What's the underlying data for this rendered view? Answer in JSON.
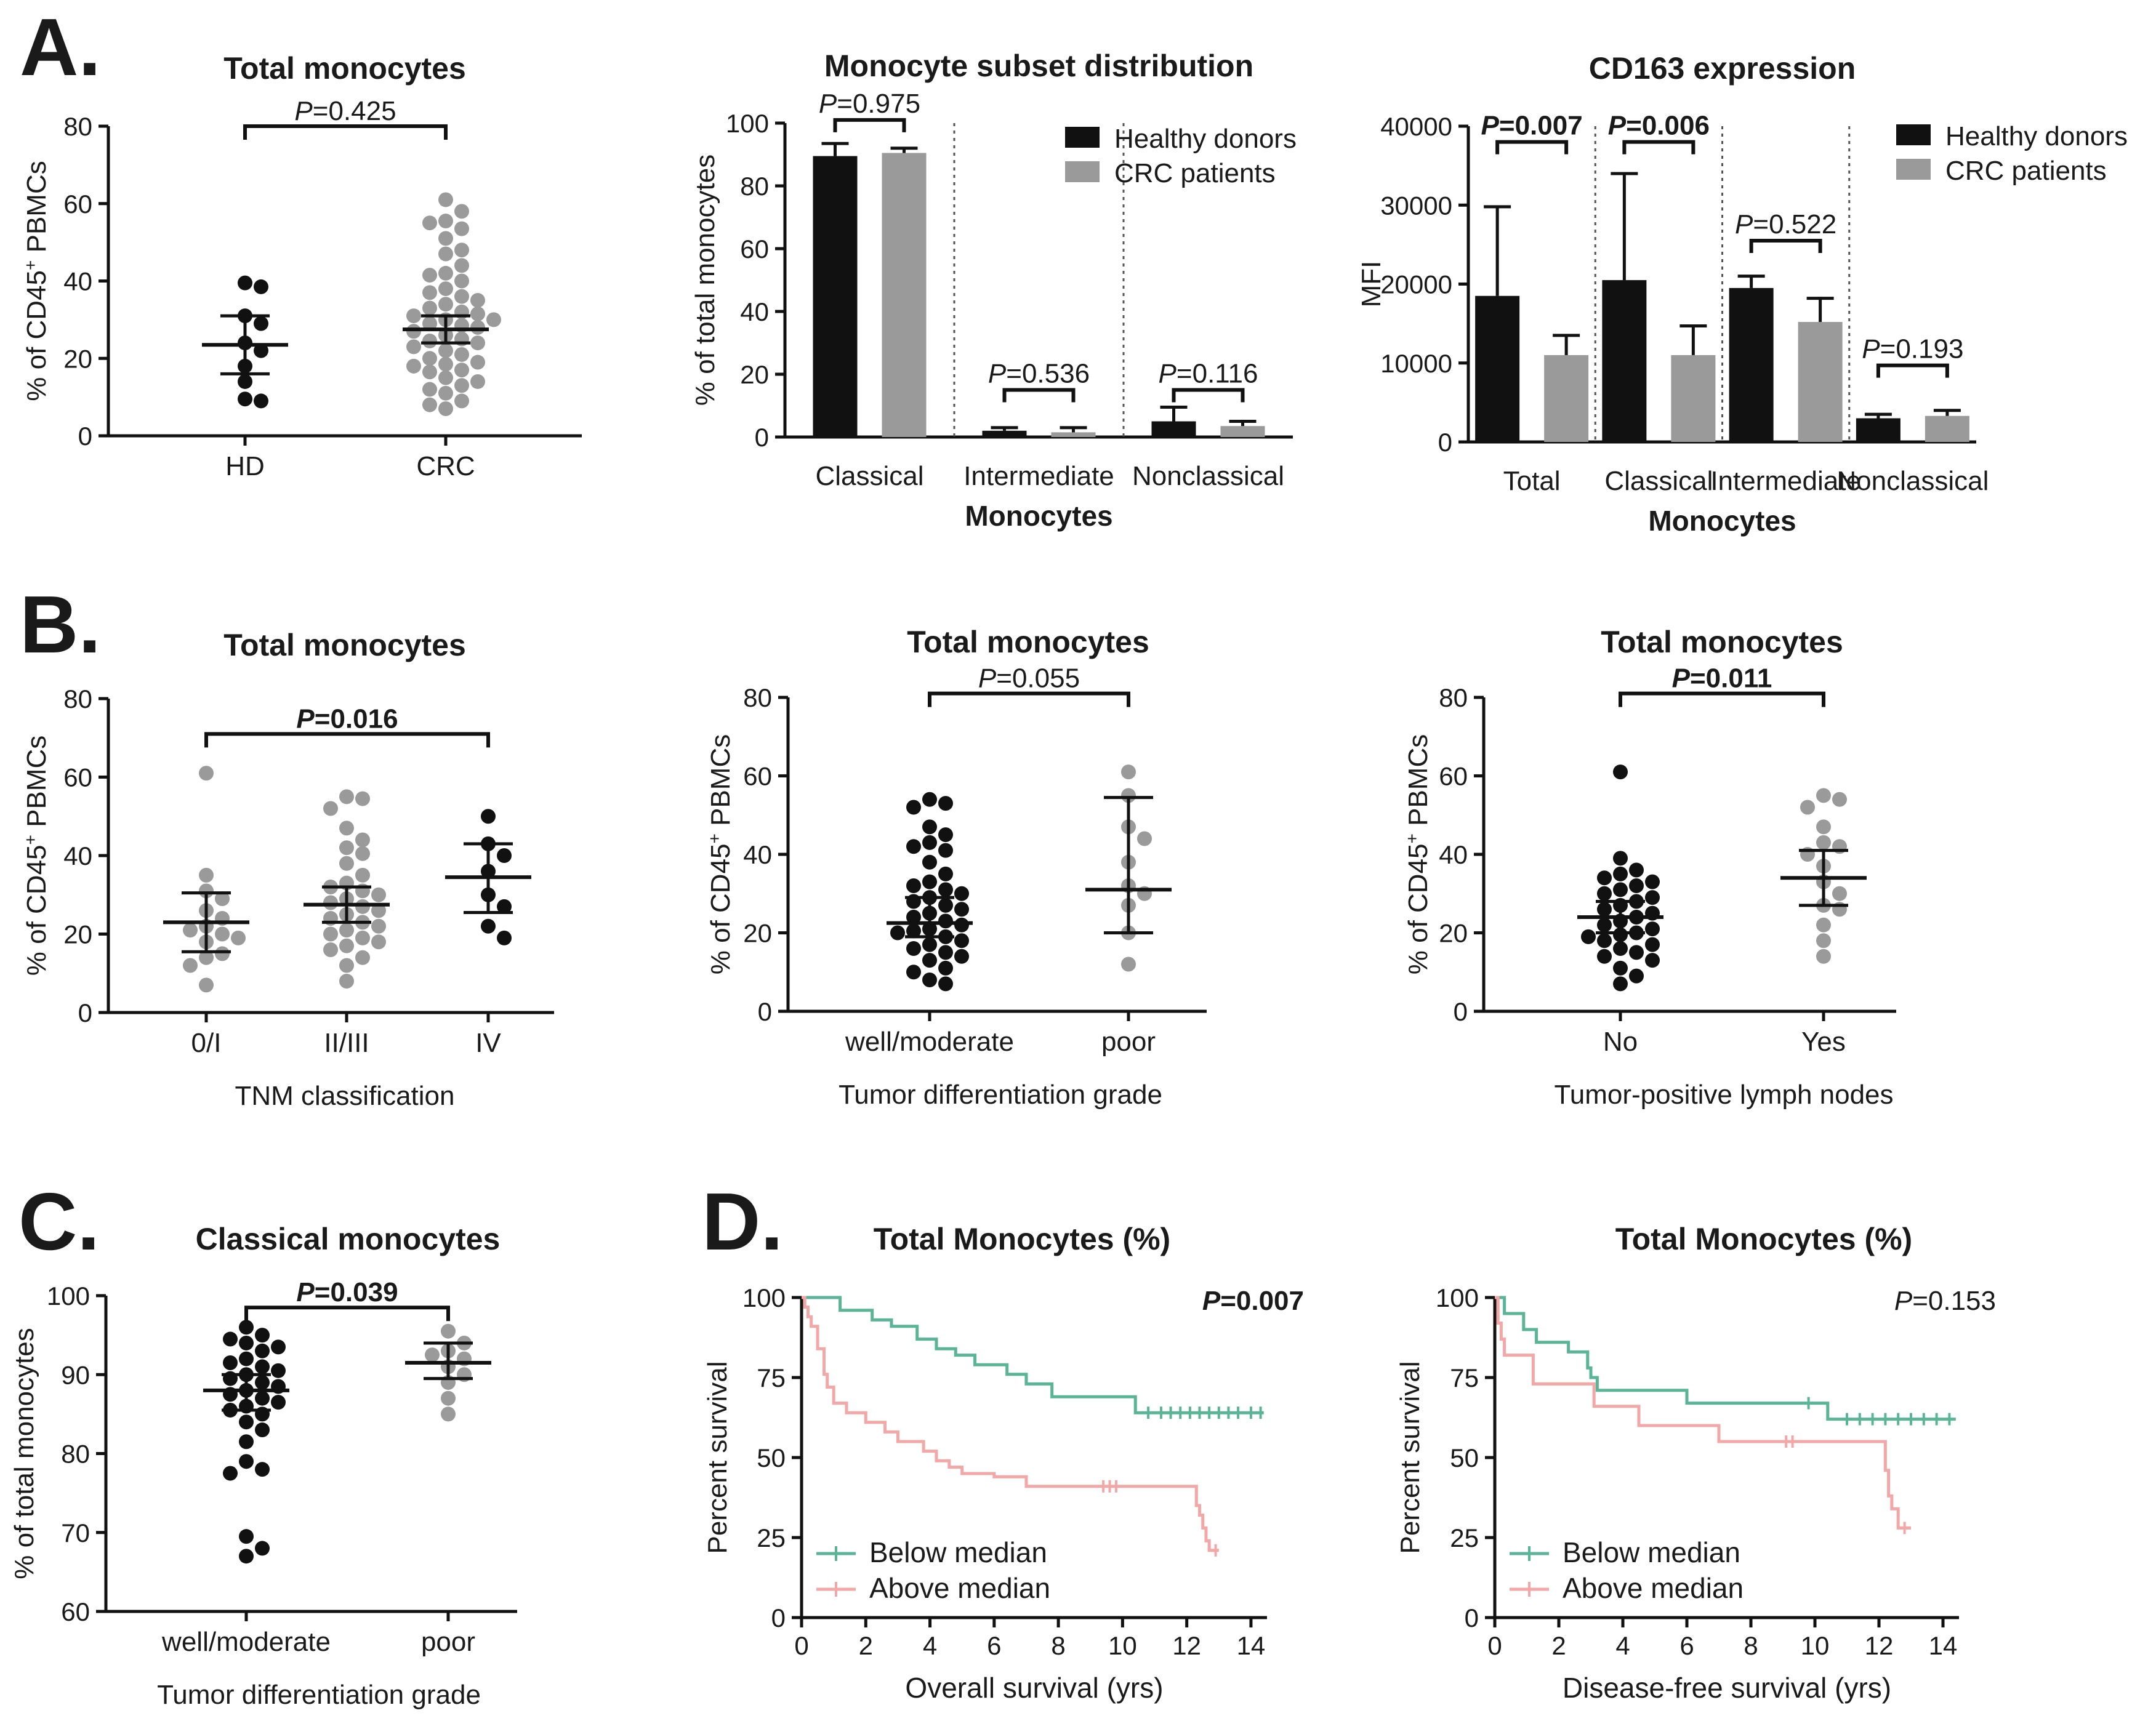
{
  "colors": {
    "black": "#111111",
    "gray": "#9a9a9a",
    "green": "#5ab596",
    "pink": "#f4a7a7"
  },
  "chart_data": [
    {
      "id": "a1",
      "type": "scatter",
      "panel_letter": "A.",
      "title": "Total monocytes",
      "ylabel": "% of CD45+ PBMCs",
      "xlabel": "",
      "ylim": [
        0,
        80
      ],
      "yticks": [
        0,
        20,
        40,
        60,
        80
      ],
      "categories": [
        "HD",
        "CRC"
      ],
      "groups": [
        {
          "name": "HD",
          "color": "black",
          "points": [
            39.5,
            38.5,
            31,
            29,
            24,
            22,
            18,
            14,
            9.5,
            9
          ],
          "mean": 23.5,
          "lower": 16,
          "upper": 31
        },
        {
          "name": "CRC",
          "color": "gray",
          "points": [
            61,
            58,
            55.5,
            55,
            53.5,
            51,
            48,
            47,
            44,
            42,
            41.5,
            40,
            38,
            37,
            36,
            35,
            34,
            33,
            32,
            31.5,
            31,
            30,
            30,
            29,
            28.5,
            28,
            27,
            26,
            25,
            24.5,
            24,
            23,
            22,
            21,
            20,
            19,
            18.5,
            18,
            17,
            16.5,
            15,
            14,
            13,
            12,
            11,
            9,
            8,
            7
          ],
          "mean": 27.5,
          "lower": 24,
          "upper": 31
        }
      ],
      "comparisons": [
        {
          "label": "P=0.425",
          "bold": false,
          "from": 0,
          "to": 1,
          "y": 80
        }
      ]
    },
    {
      "id": "a2",
      "type": "bar",
      "title": "Monocyte subset distribution",
      "ylabel": "% of total monocytes",
      "xlabel": "Monocytes",
      "ylim": [
        0,
        100
      ],
      "yticks": [
        0,
        20,
        40,
        60,
        80,
        100
      ],
      "categories": [
        "Classical",
        "Intermediate",
        "Nonclassical"
      ],
      "series": [
        {
          "name": "Healthy donors",
          "color": "black",
          "values": [
            89.5,
            2,
            5
          ],
          "errors": [
            4,
            1,
            4.5
          ]
        },
        {
          "name": "CRC patients",
          "color": "gray",
          "values": [
            90.5,
            1.5,
            3.5
          ],
          "errors": [
            1.5,
            1.5,
            1.5
          ]
        }
      ],
      "comparisons": [
        {
          "label": "P=0.975",
          "bold": false,
          "category": 0,
          "y": 101
        },
        {
          "label": "P=0.536",
          "bold": false,
          "category": 1,
          "y": 15
        },
        {
          "label": "P=0.116",
          "bold": false,
          "category": 2,
          "y": 15
        }
      ],
      "legend": "top-right"
    },
    {
      "id": "a3",
      "type": "bar",
      "title": "CD163 expression",
      "ylabel": "MFI",
      "xlabel": "Monocytes",
      "ylim": [
        0,
        40000
      ],
      "yticks": [
        0,
        10000,
        20000,
        30000,
        40000
      ],
      "categories": [
        "Total",
        "Classical",
        "Intermediate",
        "Nonclassical"
      ],
      "series": [
        {
          "name": "Healthy donors",
          "color": "black",
          "values": [
            18500,
            20500,
            19500,
            3000
          ],
          "errors": [
            11300,
            13500,
            1500,
            500
          ]
        },
        {
          "name": "CRC patients",
          "color": "gray",
          "values": [
            11000,
            11000,
            15200,
            3300
          ],
          "errors": [
            2500,
            3700,
            3000,
            700
          ]
        }
      ],
      "comparisons": [
        {
          "label": "P=0.007",
          "bold": true,
          "category": 0,
          "y": 38000
        },
        {
          "label": "P=0.006",
          "bold": true,
          "category": 1,
          "y": 38000
        },
        {
          "label": "P=0.522",
          "bold": false,
          "category": 2,
          "y": 25500
        },
        {
          "label": "P=0.193",
          "bold": false,
          "category": 3,
          "y": 9700
        }
      ],
      "legend": "top-right"
    },
    {
      "id": "b1",
      "type": "scatter",
      "panel_letter": "B.",
      "title": "Total monocytes",
      "ylabel": "% of CD45+ PBMCs",
      "xlabel": "TNM classification",
      "ylim": [
        0,
        80
      ],
      "yticks": [
        0,
        20,
        40,
        60,
        80
      ],
      "categories": [
        "0/I",
        "II/III",
        "IV"
      ],
      "groups": [
        {
          "name": "0/I",
          "color": "gray",
          "points": [
            61,
            35,
            31,
            29,
            26,
            24,
            22,
            21,
            20,
            19,
            18,
            15,
            14,
            12,
            7
          ],
          "mean": 23,
          "lower": 15.5,
          "upper": 30.5
        },
        {
          "name": "II/III",
          "color": "gray",
          "points": [
            55,
            54.5,
            52,
            47,
            44,
            42,
            40.5,
            38,
            35,
            33,
            32,
            31,
            30,
            29,
            28,
            27,
            26,
            25,
            24,
            23,
            22,
            21,
            20,
            19,
            18,
            17,
            16,
            14,
            12,
            8
          ],
          "mean": 27.5,
          "lower": 23,
          "upper": 32
        },
        {
          "name": "IV",
          "color": "black",
          "points": [
            50,
            43,
            40,
            36,
            30,
            27,
            22,
            19
          ],
          "mean": 34.5,
          "lower": 25.5,
          "upper": 43
        }
      ],
      "comparisons": [
        {
          "label": "P=0.016",
          "bold": true,
          "from": 0,
          "to": 2,
          "y": 71
        }
      ]
    },
    {
      "id": "b2",
      "type": "scatter",
      "title": "Total monocytes",
      "ylabel": "% of CD45+ PBMCs",
      "xlabel": "Tumor differentiation grade",
      "ylim": [
        0,
        80
      ],
      "yticks": [
        0,
        20,
        40,
        60,
        80
      ],
      "categories": [
        "well/moderate",
        "poor"
      ],
      "groups": [
        {
          "name": "well/moderate",
          "color": "black",
          "points": [
            54,
            53,
            52,
            47,
            45,
            43,
            42,
            41,
            38,
            35,
            33,
            32,
            31,
            30,
            29,
            28,
            27,
            26,
            25,
            24,
            23,
            22,
            21,
            20.5,
            20,
            19,
            18,
            17,
            16,
            15,
            14,
            13,
            11,
            10,
            8,
            7
          ],
          "mean": 22.5,
          "lower": 19,
          "upper": 29
        },
        {
          "name": "poor",
          "color": "gray",
          "points": [
            61,
            55,
            47,
            44,
            38,
            32,
            30,
            27,
            20,
            12
          ],
          "mean": 31,
          "lower": 20,
          "upper": 54.5
        }
      ],
      "comparisons": [
        {
          "label": "P=0.055",
          "bold": false,
          "from": 0,
          "to": 1,
          "y": 81
        }
      ]
    },
    {
      "id": "b3",
      "type": "scatter",
      "title": "Total monocytes",
      "ylabel": "% of CD45+ PBMCs",
      "xlabel": "Tumor-positive lymph nodes",
      "ylim": [
        0,
        80
      ],
      "yticks": [
        0,
        20,
        40,
        60,
        80
      ],
      "categories": [
        "No",
        "Yes"
      ],
      "groups": [
        {
          "name": "No",
          "color": "black",
          "points": [
            61,
            39,
            36,
            35,
            34,
            33,
            32,
            31,
            30,
            29,
            28,
            27,
            26,
            25,
            24,
            23,
            22,
            21,
            20,
            19.5,
            19,
            18,
            17,
            16,
            15,
            14,
            13,
            11,
            9,
            7
          ],
          "mean": 24,
          "lower": 20,
          "upper": 28
        },
        {
          "name": "Yes",
          "color": "gray",
          "points": [
            55,
            54,
            52,
            47,
            43,
            42,
            40,
            37,
            33,
            30,
            27,
            26,
            22,
            18,
            14
          ],
          "mean": 34,
          "lower": 27,
          "upper": 41
        }
      ],
      "comparisons": [
        {
          "label": "P=0.011",
          "bold": true,
          "from": 0,
          "to": 1,
          "y": 81
        }
      ]
    },
    {
      "id": "c1",
      "type": "scatter",
      "panel_letter": "C.",
      "title": "Classical monocytes",
      "ylabel": "% of total monocytes",
      "xlabel": "Tumor differentiation grade",
      "ylim": [
        60,
        100
      ],
      "yticks": [
        60,
        70,
        80,
        90,
        100
      ],
      "categories": [
        "well/moderate",
        "poor"
      ],
      "groups": [
        {
          "name": "well/moderate",
          "color": "black",
          "points": [
            96,
            95,
            94.5,
            94,
            93.5,
            93,
            92,
            91.5,
            91,
            90.5,
            90,
            89.5,
            89,
            88.5,
            88,
            87.5,
            87,
            86.5,
            86,
            85.5,
            85,
            84,
            83,
            81.5,
            79,
            78,
            77.5,
            69.5,
            68,
            67
          ],
          "mean": 88,
          "lower": 85.5,
          "upper": 90
        },
        {
          "name": "poor",
          "color": "gray",
          "points": [
            95.5,
            94,
            93,
            92.5,
            92,
            91,
            90,
            89,
            87,
            85
          ],
          "mean": 91.5,
          "lower": 89.5,
          "upper": 94
        }
      ],
      "comparisons": [
        {
          "label": "P=0.039",
          "bold": true,
          "from": 0,
          "to": 1,
          "y": 98.5
        }
      ]
    },
    {
      "id": "d1",
      "type": "line",
      "panel_letter": "D.",
      "title": "Total Monocytes (%)",
      "ylabel": "Percent survival",
      "xlabel": "Overall survival (yrs)",
      "xlim": [
        0,
        14.5
      ],
      "ylim": [
        0,
        100
      ],
      "xticks": [
        0,
        2,
        4,
        6,
        8,
        10,
        12,
        14
      ],
      "yticks": [
        0,
        25,
        50,
        75,
        100
      ],
      "pvalue": "P=0.007",
      "pvalue_bold": true,
      "series": [
        {
          "name": "Below median",
          "color": "green",
          "x": [
            0,
            1.2,
            2.2,
            2.8,
            3.6,
            4.2,
            4.8,
            5.4,
            6.4,
            7.0,
            7.8,
            10.4,
            14.4
          ],
          "y": [
            100,
            96,
            93,
            91,
            87,
            84,
            82,
            79,
            76,
            73,
            69,
            64,
            64
          ],
          "censored": [
            10.8,
            11.2,
            11.5,
            11.8,
            12.1,
            12.4,
            12.7,
            13.0,
            13.3,
            13.6,
            14.0,
            14.3
          ],
          "censored_y": [
            64,
            64,
            64,
            64,
            64,
            64,
            64,
            64,
            64,
            64,
            64,
            64
          ]
        },
        {
          "name": "Above median",
          "color": "pink",
          "x": [
            0,
            0.1,
            0.2,
            0.3,
            0.5,
            0.7,
            0.8,
            1.0,
            1.4,
            2.0,
            2.6,
            3.0,
            3.8,
            4.2,
            4.6,
            5.0,
            6.0,
            7.0,
            12.3,
            12.4,
            12.5,
            12.6,
            12.7,
            13.0
          ],
          "y": [
            100,
            97,
            94,
            91,
            84,
            76,
            72,
            67,
            64,
            61,
            58,
            55,
            52,
            49,
            47,
            45,
            44,
            41,
            35,
            32,
            28,
            24,
            21,
            21
          ],
          "censored": [
            9.4,
            9.6,
            9.8,
            12.9
          ],
          "censored_y": [
            41,
            41,
            41,
            21
          ]
        }
      ],
      "legend": "bottom-left"
    },
    {
      "id": "d2",
      "type": "line",
      "title": "Total Monocytes (%)",
      "ylabel": "Percent survival",
      "xlabel": "Disease-free survival (yrs)",
      "xlim": [
        0,
        14.5
      ],
      "ylim": [
        0,
        100
      ],
      "xticks": [
        0,
        2,
        4,
        6,
        8,
        10,
        12,
        14
      ],
      "yticks": [
        0,
        25,
        50,
        75,
        100
      ],
      "pvalue": "P=0.153",
      "pvalue_bold": false,
      "series": [
        {
          "name": "Below median",
          "color": "green",
          "x": [
            0,
            0.3,
            0.9,
            1.3,
            2.3,
            2.9,
            3.0,
            3.2,
            6.0,
            10.4,
            14.4
          ],
          "y": [
            100,
            95,
            90,
            86,
            83,
            78,
            75,
            71,
            67,
            62,
            62
          ],
          "censored": [
            9.8,
            11.0,
            11.4,
            11.8,
            12.2,
            12.6,
            13.0,
            13.4,
            13.8,
            14.2
          ],
          "censored_y": [
            67,
            62,
            62,
            62,
            62,
            62,
            62,
            62,
            62,
            62
          ]
        },
        {
          "name": "Above median",
          "color": "pink",
          "x": [
            0,
            0.1,
            0.2,
            0.3,
            1.2,
            3.1,
            4.5,
            7.0,
            12.2,
            12.3,
            12.4,
            12.6,
            13.0
          ],
          "y": [
            100,
            92,
            87,
            82,
            73,
            66,
            60,
            55,
            46,
            38,
            34,
            28,
            28
          ],
          "censored": [
            9.1,
            9.3,
            12.8
          ],
          "censored_y": [
            55,
            55,
            28
          ]
        }
      ],
      "legend": "bottom-left"
    }
  ]
}
